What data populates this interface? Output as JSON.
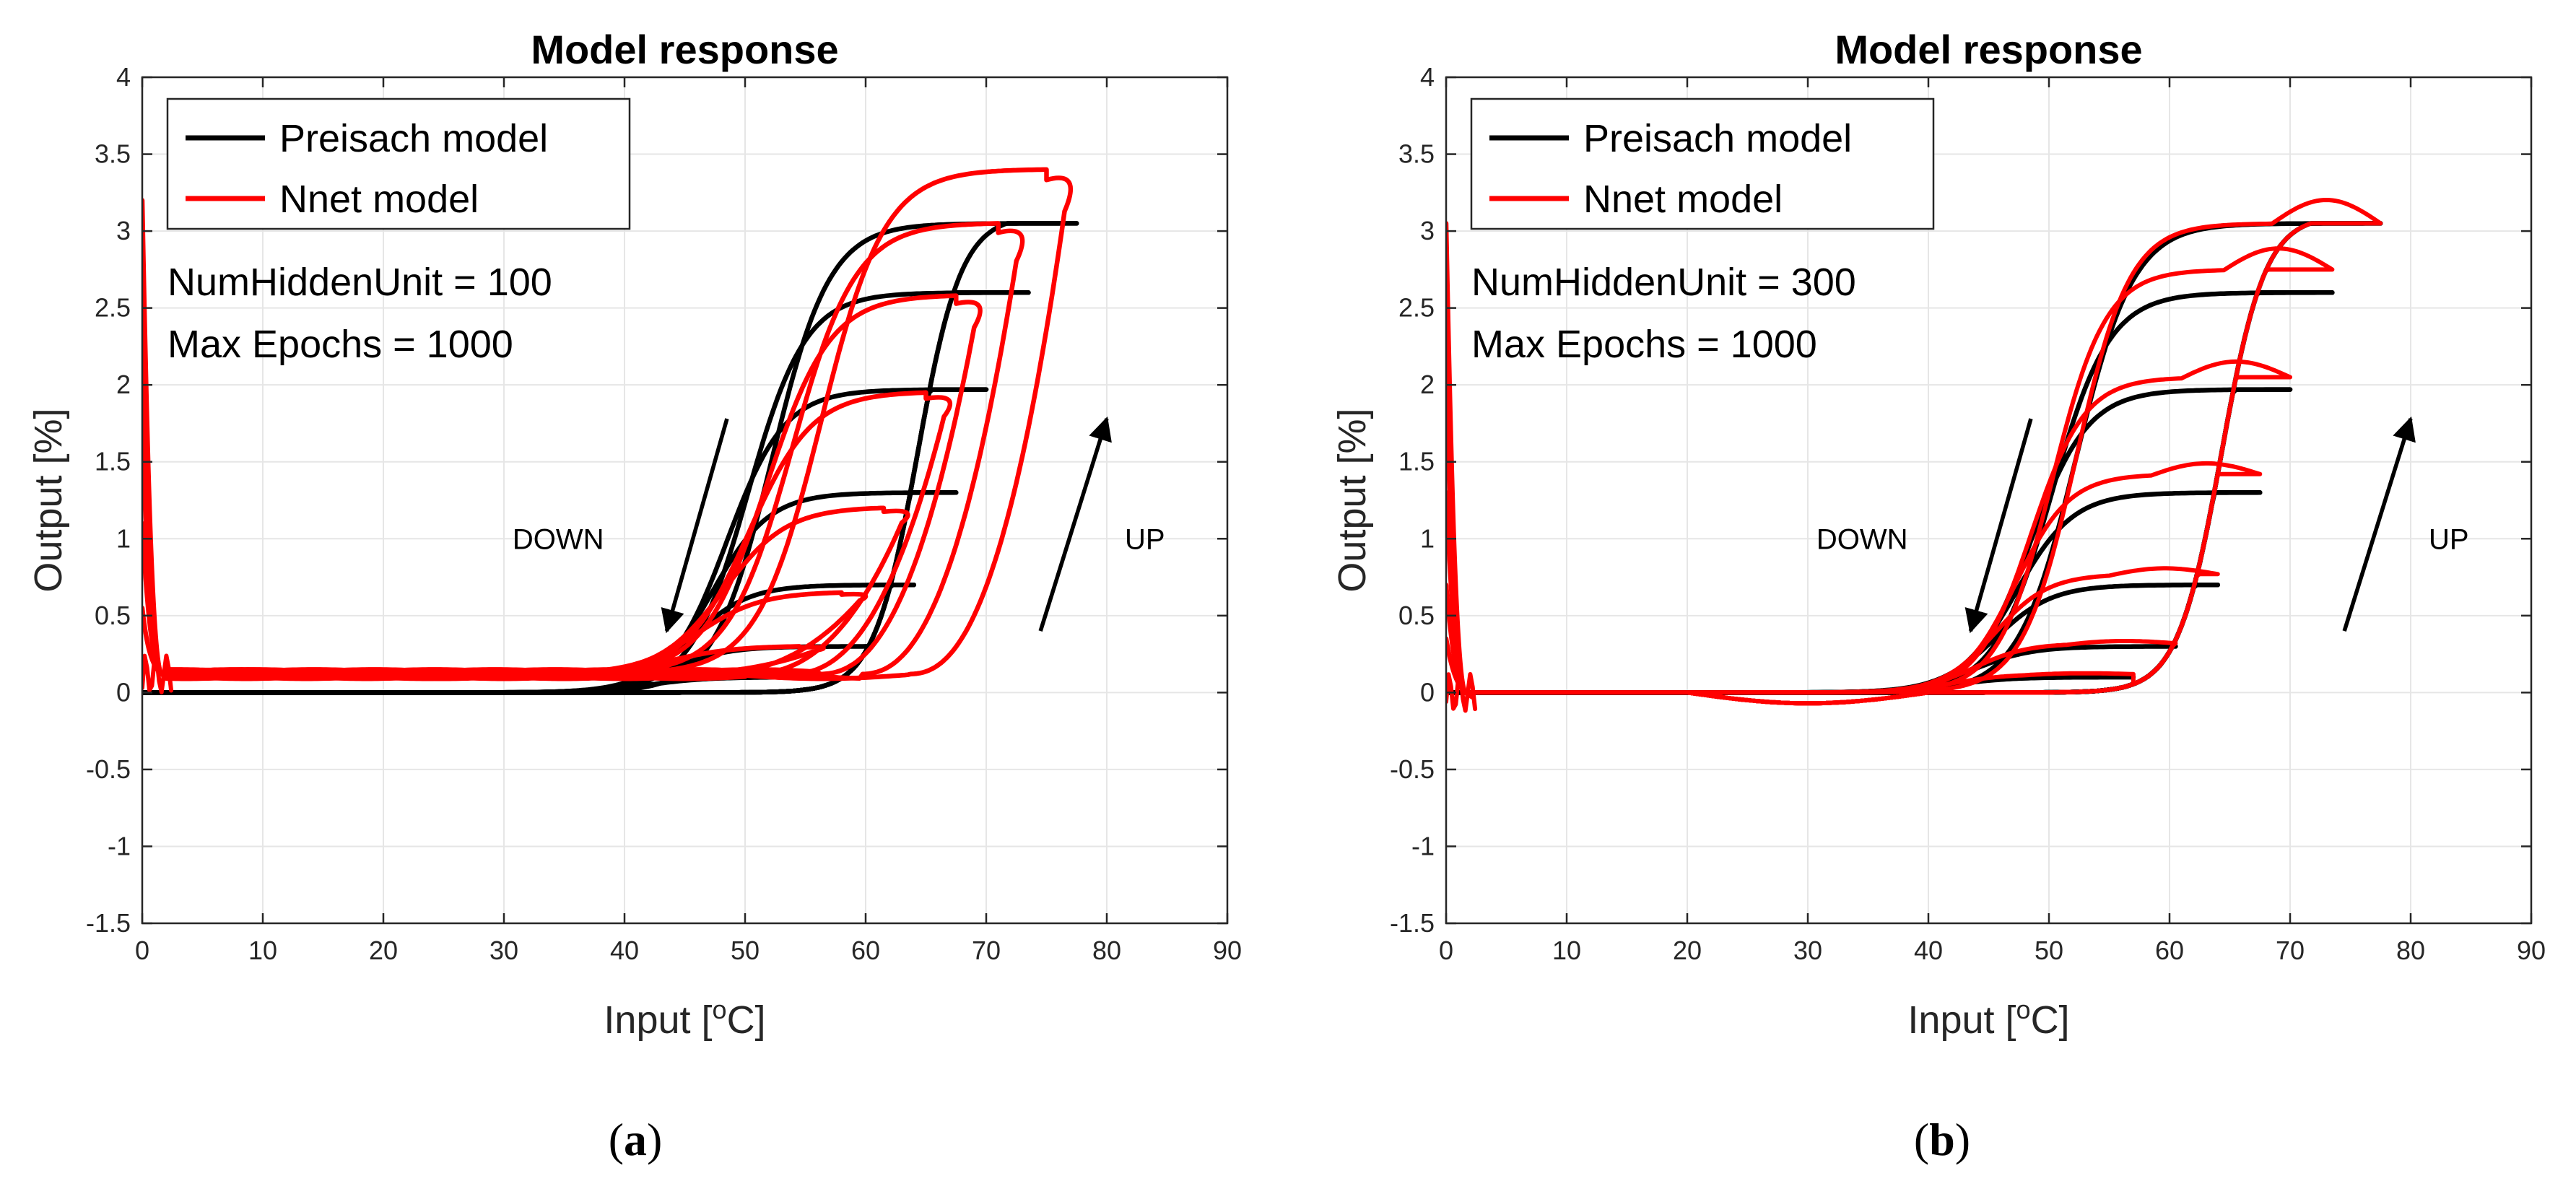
{
  "chart_data": [
    {
      "type": "line",
      "panel_label": "(a)",
      "title": "Model response",
      "xlabel_prefix": "Input [",
      "xlabel_sup": "o",
      "xlabel_suffix": "C]",
      "ylabel": "Output [%]",
      "xlim": [
        0,
        90
      ],
      "ylim": [
        -1.5,
        4
      ],
      "xticks": [
        0,
        10,
        20,
        30,
        40,
        50,
        60,
        70,
        80,
        90
      ],
      "yticks": [
        -1.5,
        -1,
        -0.5,
        0,
        0.5,
        1,
        1.5,
        2,
        2.5,
        3,
        3.5,
        4
      ],
      "grid": true,
      "legend": {
        "position": "top-left",
        "entries": [
          {
            "label": "Preisach model",
            "color": "#000000"
          },
          {
            "label": "Nnet model",
            "color": "#ff0000"
          }
        ]
      },
      "annotations": [
        "NumHiddenUnit = 100",
        "Max Epochs = 1000"
      ],
      "arrows": [
        {
          "label": "DOWN",
          "from": [
            48.5,
            1.78
          ],
          "to": [
            43.5,
            0.4
          ]
        },
        {
          "label": "UP",
          "from": [
            74.5,
            0.4
          ],
          "to": [
            80,
            1.78
          ]
        }
      ],
      "series": [
        {
          "name": "Preisach model",
          "color": "#000000",
          "reversal_points": [
            57,
            60.5,
            64,
            67.5,
            70,
            73.5,
            77.5
          ],
          "peaks": [
            0.1,
            0.3,
            0.7,
            1.3,
            1.97,
            2.6,
            3.05
          ]
        },
        {
          "name": "Nnet model",
          "color": "#ff0000",
          "variant": "a",
          "reversal_points": [
            57,
            60.5,
            64,
            67.5,
            70,
            73.5,
            77.5
          ],
          "peaks": [
            0.3,
            0.65,
            1.2,
            1.95,
            2.58,
            3.05,
            3.4
          ]
        }
      ]
    },
    {
      "type": "line",
      "panel_label": "(b)",
      "title": "Model response",
      "xlabel_prefix": "Input [",
      "xlabel_sup": "o",
      "xlabel_suffix": "C]",
      "ylabel": "Output [%]",
      "xlim": [
        0,
        90
      ],
      "ylim": [
        -1.5,
        4
      ],
      "xticks": [
        0,
        10,
        20,
        30,
        40,
        50,
        60,
        70,
        80,
        90
      ],
      "yticks": [
        -1.5,
        -1,
        -0.5,
        0,
        0.5,
        1,
        1.5,
        2,
        2.5,
        3,
        3.5,
        4
      ],
      "grid": true,
      "legend": {
        "position": "top-left",
        "entries": [
          {
            "label": "Preisach model",
            "color": "#000000"
          },
          {
            "label": "Nnet model",
            "color": "#ff0000"
          }
        ]
      },
      "annotations": [
        "NumHiddenUnit = 300",
        "Max Epochs = 1000"
      ],
      "arrows": [
        {
          "label": "DOWN",
          "from": [
            48.5,
            1.78
          ],
          "to": [
            43.5,
            0.4
          ]
        },
        {
          "label": "UP",
          "from": [
            74.5,
            0.4
          ],
          "to": [
            80,
            1.78
          ]
        }
      ],
      "series": [
        {
          "name": "Preisach model",
          "color": "#000000",
          "reversal_points": [
            57,
            60.5,
            64,
            67.5,
            70,
            73.5,
            77.5
          ],
          "peaks": [
            0.1,
            0.3,
            0.7,
            1.3,
            1.97,
            2.6,
            3.05
          ]
        },
        {
          "name": "Nnet model",
          "color": "#ff0000",
          "variant": "b",
          "reversal_points": [
            57,
            60.5,
            64,
            67.5,
            70,
            73.5,
            77.5
          ],
          "peaks": [
            0.12,
            0.32,
            0.77,
            1.42,
            2.05,
            2.75,
            3.05
          ]
        }
      ]
    }
  ]
}
